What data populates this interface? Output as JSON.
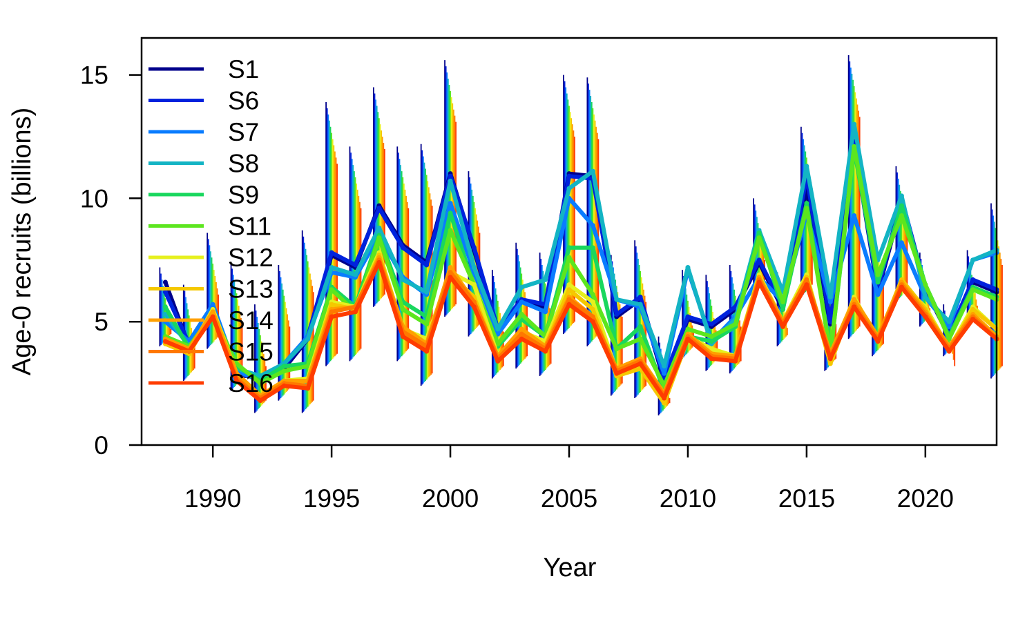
{
  "chart_data": {
    "type": "line",
    "title": "",
    "xlabel": "Year",
    "ylabel": "Age-0 recruits (billions)",
    "xlim": [
      1987,
      2023
    ],
    "ylim": [
      0,
      16.5
    ],
    "x_ticks": [
      1990,
      1995,
      2000,
      2005,
      2010,
      2015,
      2020
    ],
    "y_ticks": [
      0,
      5,
      10,
      15
    ],
    "legend_position": "top-left",
    "error_bars": true,
    "x": [
      1988,
      1989,
      1990,
      1991,
      1992,
      1993,
      1994,
      1995,
      1996,
      1997,
      1998,
      1999,
      2000,
      2001,
      2002,
      2003,
      2004,
      2005,
      2006,
      2007,
      2008,
      2009,
      2010,
      2011,
      2012,
      2013,
      2014,
      2015,
      2016,
      2017,
      2018,
      2019,
      2020,
      2021,
      2022,
      2023
    ],
    "series": [
      {
        "name": "S1",
        "color": "#00008b",
        "values": [
          6.6,
          4.0,
          5.5,
          2.8,
          2.8,
          3.1,
          4.3,
          7.7,
          7.2,
          9.7,
          8.1,
          7.4,
          11.0,
          7.9,
          4.6,
          5.8,
          5.6,
          11.0,
          10.9,
          5.2,
          5.9,
          2.6,
          5.1,
          4.8,
          5.5,
          7.4,
          5.5,
          10.4,
          4.9,
          12.2,
          6.2,
          9.8,
          6.3,
          4.4,
          6.6,
          6.2
        ]
      },
      {
        "name": "S6",
        "color": "#0022dd",
        "values": [
          6.2,
          4.1,
          5.6,
          2.9,
          2.7,
          3.2,
          4.4,
          7.8,
          7.3,
          9.6,
          8.0,
          7.3,
          10.9,
          8.0,
          4.7,
          5.9,
          5.7,
          10.9,
          10.8,
          5.3,
          6.0,
          2.7,
          5.2,
          4.9,
          5.6,
          7.5,
          5.6,
          10.9,
          5.0,
          12.3,
          6.3,
          10.0,
          6.4,
          4.5,
          6.7,
          6.3
        ]
      },
      {
        "name": "S7",
        "color": "#0a7cff",
        "values": [
          5.0,
          4.2,
          5.7,
          3.0,
          2.6,
          3.3,
          4.4,
          7.0,
          6.8,
          8.5,
          6.8,
          6.1,
          9.8,
          7.0,
          4.5,
          5.8,
          5.4,
          10.0,
          8.9,
          5.9,
          5.6,
          2.9,
          7.1,
          4.2,
          5.2,
          6.8,
          5.8,
          9.4,
          5.8,
          9.3,
          6.1,
          8.2,
          6.0,
          4.8,
          7.5,
          7.8
        ]
      },
      {
        "name": "S8",
        "color": "#13b4c4",
        "values": [
          5.3,
          4.0,
          5.3,
          3.1,
          2.8,
          3.3,
          4.3,
          7.2,
          6.9,
          8.8,
          6.7,
          6.2,
          10.7,
          7.2,
          4.7,
          6.4,
          6.7,
          10.4,
          11.1,
          5.9,
          5.7,
          3.2,
          7.2,
          4.1,
          5.1,
          8.7,
          6.2,
          11.3,
          6.0,
          13.0,
          7.5,
          10.1,
          6.0,
          5.0,
          7.5,
          7.9
        ]
      },
      {
        "name": "S9",
        "color": "#19d75e",
        "values": [
          5.6,
          3.9,
          5.2,
          3.2,
          2.6,
          3.2,
          3.3,
          6.4,
          5.6,
          8.5,
          5.8,
          5.2,
          9.4,
          6.4,
          4.0,
          5.1,
          4.4,
          8.0,
          8.0,
          3.9,
          4.8,
          2.2,
          4.4,
          4.2,
          4.8,
          8.6,
          5.5,
          9.8,
          3.7,
          12.0,
          6.6,
          9.7,
          6.5,
          4.4,
          6.4,
          6.0
        ]
      },
      {
        "name": "S11",
        "color": "#5ce61e",
        "values": [
          4.4,
          4.0,
          5.3,
          3.3,
          2.5,
          3.0,
          3.2,
          6.3,
          5.4,
          8.4,
          5.5,
          4.9,
          8.7,
          6.5,
          4.1,
          5.3,
          4.4,
          7.6,
          6.1,
          3.9,
          4.3,
          2.4,
          4.7,
          4.4,
          4.9,
          8.4,
          5.8,
          9.6,
          3.7,
          12.1,
          6.9,
          9.3,
          6.5,
          4.3,
          6.3,
          5.9
        ]
      },
      {
        "name": "S12",
        "color": "#e6f01e",
        "values": [
          4.2,
          3.8,
          5.5,
          2.9,
          2.0,
          2.6,
          2.7,
          5.8,
          5.6,
          7.8,
          4.7,
          4.3,
          7.0,
          6.5,
          3.6,
          4.6,
          4.2,
          6.5,
          5.8,
          3.0,
          3.2,
          1.8,
          4.4,
          3.9,
          3.6,
          6.9,
          5.0,
          6.9,
          3.4,
          6.0,
          4.2,
          6.5,
          5.6,
          3.9,
          5.6,
          4.7
        ]
      },
      {
        "name": "S13",
        "color": "#f5c800",
        "values": [
          4.1,
          3.7,
          5.4,
          2.8,
          1.9,
          2.5,
          2.6,
          5.7,
          5.5,
          7.7,
          4.6,
          3.9,
          6.9,
          6.0,
          3.5,
          4.5,
          4.0,
          6.3,
          5.5,
          2.8,
          3.1,
          1.7,
          4.3,
          3.7,
          3.5,
          6.8,
          4.8,
          6.8,
          3.3,
          5.9,
          4.3,
          6.7,
          5.5,
          3.8,
          5.5,
          4.7
        ]
      },
      {
        "name": "S14",
        "color": "#ffa000",
        "values": [
          4.3,
          3.9,
          5.4,
          2.9,
          2.0,
          2.6,
          2.6,
          5.5,
          5.6,
          7.6,
          4.8,
          4.1,
          7.2,
          5.8,
          3.6,
          4.7,
          4.0,
          6.0,
          5.2,
          3.1,
          3.5,
          2.1,
          4.5,
          3.7,
          3.6,
          6.8,
          5.0,
          6.7,
          3.7,
          5.9,
          4.4,
          6.6,
          5.4,
          4.0,
          5.3,
          4.4
        ]
      },
      {
        "name": "S15",
        "color": "#ff7800",
        "values": [
          4.2,
          3.8,
          5.2,
          2.7,
          1.9,
          2.5,
          2.4,
          5.4,
          5.6,
          7.5,
          4.6,
          4.0,
          7.0,
          5.8,
          3.5,
          4.5,
          3.9,
          5.9,
          5.2,
          3.0,
          3.4,
          2.0,
          4.4,
          3.6,
          3.5,
          6.7,
          4.9,
          6.7,
          3.6,
          5.7,
          4.3,
          6.5,
          5.3,
          3.9,
          5.2,
          4.3
        ]
      },
      {
        "name": "S16",
        "color": "#ff3c00",
        "values": [
          4.2,
          3.8,
          5.2,
          2.6,
          1.8,
          2.4,
          2.3,
          5.2,
          5.4,
          7.4,
          4.4,
          3.8,
          6.8,
          5.6,
          3.4,
          4.3,
          3.8,
          5.7,
          5.0,
          2.9,
          3.3,
          1.9,
          4.3,
          3.5,
          3.4,
          6.6,
          4.8,
          6.5,
          3.5,
          5.6,
          4.2,
          6.4,
          5.2,
          3.8,
          5.1,
          4.3
        ]
      }
    ],
    "error_bars_upper": [
      7.2,
      6.5,
      8.6,
      7.4,
      5.7,
      7.3,
      8.7,
      13.9,
      12.1,
      14.5,
      12.1,
      12.2,
      15.6,
      11.1,
      7.1,
      8.2,
      7.8,
      15.0,
      14.9,
      7.7,
      8.3,
      4.4,
      7.1,
      6.9,
      7.3,
      10.0,
      7.0,
      12.9,
      7.4,
      15.8,
      9.0,
      11.3,
      7.8,
      5.7,
      7.9,
      9.8
    ],
    "error_bars_lower": [
      4.0,
      2.6,
      3.9,
      2.2,
      1.3,
      1.8,
      1.3,
      3.2,
      3.4,
      5.6,
      3.4,
      2.4,
      5.2,
      4.4,
      2.7,
      3.1,
      2.8,
      4.5,
      4.0,
      2.0,
      1.9,
      1.2,
      3.5,
      3.0,
      2.9,
      6.1,
      4.0,
      6.0,
      3.0,
      4.3,
      3.6,
      5.8,
      4.8,
      3.6,
      4.8,
      2.7
    ]
  }
}
